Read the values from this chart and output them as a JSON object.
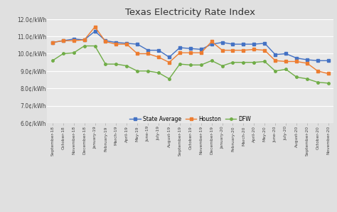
{
  "title": "Texas Electricity Rate Index",
  "categories": [
    "September-18",
    "October-18",
    "November-18",
    "December-18",
    "January-19",
    "February-19",
    "March-19",
    "April-19",
    "May-19",
    "June-19",
    "July-19",
    "August-19",
    "September-19",
    "October-19",
    "November-19",
    "December-19",
    "January-20",
    "February-20",
    "March-20",
    "April-20",
    "May-20",
    "June-20",
    "July-20",
    "August-20",
    "September-20",
    "October-20",
    "November-20"
  ],
  "state_average": [
    10.65,
    10.75,
    10.85,
    10.8,
    11.3,
    10.75,
    10.65,
    10.6,
    10.55,
    10.2,
    10.2,
    9.8,
    10.35,
    10.3,
    10.25,
    10.55,
    10.65,
    10.55,
    10.55,
    10.55,
    10.6,
    9.95,
    10.0,
    9.75,
    9.65,
    9.6,
    9.6
  ],
  "houston": [
    10.65,
    10.75,
    10.75,
    10.8,
    11.55,
    10.7,
    10.55,
    10.55,
    10.0,
    10.0,
    9.8,
    9.5,
    10.05,
    10.05,
    10.05,
    10.7,
    10.2,
    10.2,
    10.2,
    10.25,
    10.2,
    9.6,
    9.55,
    9.55,
    9.45,
    9.0,
    8.85
  ],
  "dfw": [
    9.6,
    10.0,
    10.05,
    10.45,
    10.45,
    9.4,
    9.4,
    9.3,
    9.0,
    9.0,
    8.9,
    8.55,
    9.4,
    9.35,
    9.35,
    9.6,
    9.3,
    9.5,
    9.5,
    9.5,
    9.55,
    9.0,
    9.1,
    8.65,
    8.55,
    8.35,
    8.3
  ],
  "state_avg_color": "#4472c4",
  "houston_color": "#ed7d31",
  "dfw_color": "#70ad47",
  "ylim_min": 6.0,
  "ylim_max": 12.0,
  "yticks": [
    6.0,
    7.0,
    8.0,
    9.0,
    10.0,
    11.0,
    12.0
  ],
  "bg_color": "#e0e0e0",
  "plot_bg_color": "#e8e8e8",
  "grid_color": "#ffffff",
  "legend_labels": [
    "State Average",
    "Houston",
    "DFW"
  ]
}
